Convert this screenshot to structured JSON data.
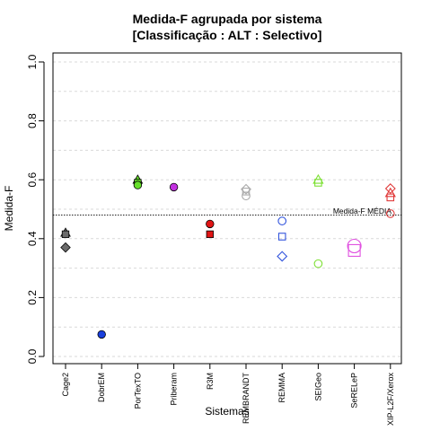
{
  "chart_data": {
    "type": "scatter",
    "title_line1": "Medida-F agrupada por sistema",
    "title_line2": "[Classificação : ALT : Selectivo]",
    "xlabel": "Sistemas",
    "ylabel": "Medida-F",
    "ylim": [
      0.0,
      1.0
    ],
    "yticks": [
      "0.0",
      "0.2",
      "0.4",
      "0.6",
      "0.8",
      "1.0"
    ],
    "ytick_values": [
      0.0,
      0.2,
      0.4,
      0.6,
      0.8,
      1.0
    ],
    "grid": true,
    "categories": [
      "Cage2",
      "DobrEM",
      "PorTexTO",
      "Priberam",
      "R3M",
      "REMBRANDT",
      "REMMA",
      "SEIGeo",
      "SeRELeP",
      "XIP-L2F/Xerox"
    ],
    "reference_line": {
      "label": "Medida-F MÉDIA",
      "value": 0.48
    },
    "points": [
      {
        "category": "Cage2",
        "y": 0.42,
        "shape": "triangle",
        "color": "#6b6b6b",
        "filled": true
      },
      {
        "category": "Cage2",
        "y": 0.415,
        "shape": "square",
        "color": "#6b6b6b",
        "filled": true
      },
      {
        "category": "Cage2",
        "y": 0.37,
        "shape": "diamond",
        "color": "#6b6b6b",
        "filled": true
      },
      {
        "category": "DobrEM",
        "y": 0.075,
        "shape": "circle",
        "color": "#1a3fdc",
        "filled": true
      },
      {
        "category": "PorTexTO",
        "y": 0.6,
        "shape": "triangle",
        "color": "#66e02a",
        "filled": true
      },
      {
        "category": "PorTexTO",
        "y": 0.59,
        "shape": "square",
        "color": "#66e02a",
        "filled": true
      },
      {
        "category": "PorTexTO",
        "y": 0.582,
        "shape": "circle",
        "color": "#66e02a",
        "filled": true
      },
      {
        "category": "Priberam",
        "y": 0.575,
        "shape": "circle",
        "color": "#c230e0",
        "filled": true
      },
      {
        "category": "R3M",
        "y": 0.45,
        "shape": "circle",
        "color": "#e01414",
        "filled": true
      },
      {
        "category": "R3M",
        "y": 0.415,
        "shape": "square",
        "color": "#e01414",
        "filled": true
      },
      {
        "category": "REMBRANDT",
        "y": 0.568,
        "shape": "diamond",
        "color": "#aaaaaa",
        "filled": false
      },
      {
        "category": "REMBRANDT",
        "y": 0.56,
        "shape": "square",
        "color": "#aaaaaa",
        "filled": false
      },
      {
        "category": "REMBRANDT",
        "y": 0.545,
        "shape": "circle",
        "color": "#aaaaaa",
        "filled": false
      },
      {
        "category": "REMMA",
        "y": 0.46,
        "shape": "circle",
        "color": "#3355dd",
        "filled": false
      },
      {
        "category": "REMMA",
        "y": 0.407,
        "shape": "square",
        "color": "#3355dd",
        "filled": false
      },
      {
        "category": "REMMA",
        "y": 0.34,
        "shape": "diamond",
        "color": "#3355dd",
        "filled": false
      },
      {
        "category": "SEIGeo",
        "y": 0.6,
        "shape": "triangle",
        "color": "#7ee035",
        "filled": false
      },
      {
        "category": "SEIGeo",
        "y": 0.59,
        "shape": "square",
        "color": "#7ee035",
        "filled": false
      },
      {
        "category": "SEIGeo",
        "y": 0.315,
        "shape": "circle",
        "color": "#7ee035",
        "filled": false
      },
      {
        "category": "SeRELeP",
        "y": 0.375,
        "shape": "circle",
        "color": "#e050e0",
        "filled": false,
        "size": "large"
      },
      {
        "category": "SeRELeP",
        "y": 0.36,
        "shape": "square",
        "color": "#e050e0",
        "filled": false,
        "size": "large"
      },
      {
        "category": "XIP-L2F/Xerox",
        "y": 0.57,
        "shape": "diamond",
        "color": "#e03a3a",
        "filled": false
      },
      {
        "category": "XIP-L2F/Xerox",
        "y": 0.555,
        "shape": "triangle",
        "color": "#e03a3a",
        "filled": false
      },
      {
        "category": "XIP-L2F/Xerox",
        "y": 0.54,
        "shape": "square",
        "color": "#e03a3a",
        "filled": false
      },
      {
        "category": "XIP-L2F/Xerox",
        "y": 0.485,
        "shape": "circle",
        "color": "#e03a3a",
        "filled": false
      }
    ]
  }
}
